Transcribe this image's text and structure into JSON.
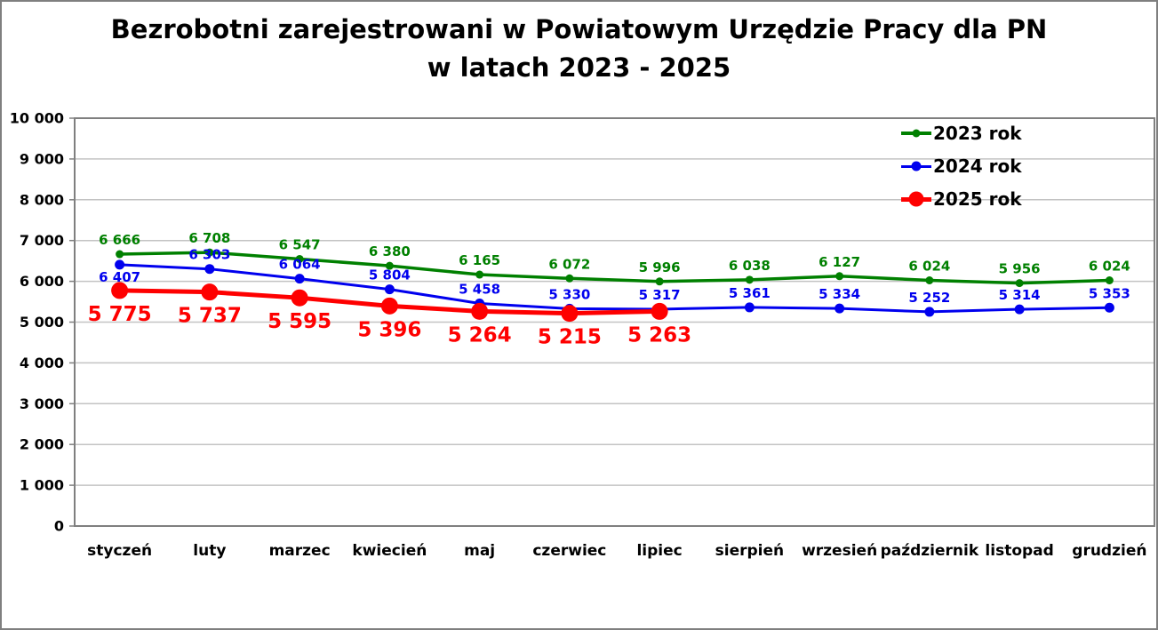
{
  "title_line1": "Bezrobotni zarejestrowani w Powiatowym Urzędzie Pracy dla PN",
  "title_line2": "w latach 2023 - 2025",
  "chart_data": {
    "type": "line",
    "title": "Bezrobotni zarejestrowani w Powiatowym Urzędzie Pracy dla PN w latach 2023 - 2025",
    "categories": [
      "styczeń",
      "luty",
      "marzec",
      "kwiecień",
      "maj",
      "czerwiec",
      "lipiec",
      "sierpień",
      "wrzesień",
      "październik",
      "listopad",
      "grudzień"
    ],
    "series": [
      {
        "name": "2023 rok",
        "color": "#008000",
        "values": [
          6666,
          6708,
          6547,
          6380,
          6165,
          6072,
          5996,
          6038,
          6127,
          6024,
          5956,
          6024
        ],
        "labels": [
          "6 666",
          "6 708",
          "6 547",
          "6 380",
          "6 165",
          "6 072",
          "5 996",
          "6 038",
          "6 127",
          "6 024",
          "5 956",
          "6 024"
        ]
      },
      {
        "name": "2024 rok",
        "color": "#0000ee",
        "values": [
          6407,
          6303,
          6064,
          5804,
          5458,
          5330,
          5317,
          5361,
          5334,
          5252,
          5314,
          5353
        ],
        "labels": [
          "6 407",
          "6 303",
          "6 064",
          "5 804",
          "5 458",
          "5 330",
          "5 317",
          "5 361",
          "5 334",
          "5 252",
          "5 314",
          "5 353"
        ]
      },
      {
        "name": "2025 rok",
        "color": "#fe0000",
        "values": [
          5775,
          5737,
          5595,
          5396,
          5264,
          5215,
          5263
        ],
        "labels": [
          "5 775",
          "5 737",
          "5 595",
          "5 396",
          "5 264",
          "5 215",
          "5 263"
        ]
      }
    ],
    "ylim": [
      0,
      10000
    ],
    "ytick_step": 1000,
    "ytick_labels": [
      "0",
      "1 000",
      "2 000",
      "3 000",
      "4 000",
      "5 000",
      "6 000",
      "7 000",
      "8 000",
      "9 000",
      "10 000"
    ],
    "grid": "horizontal",
    "legend_position": "inside-top-right",
    "xlabel": "",
    "ylabel": ""
  },
  "colors": {
    "background": "#ffffff",
    "gridline": "#c3c3c3",
    "plot_border": "#7f7f7f",
    "text": "#000000"
  }
}
